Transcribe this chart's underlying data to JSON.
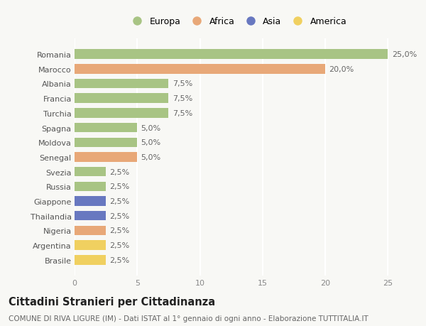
{
  "countries": [
    "Romania",
    "Marocco",
    "Albania",
    "Francia",
    "Turchia",
    "Spagna",
    "Moldova",
    "Senegal",
    "Svezia",
    "Russia",
    "Giappone",
    "Thailandia",
    "Nigeria",
    "Argentina",
    "Brasile"
  ],
  "values": [
    25.0,
    20.0,
    7.5,
    7.5,
    7.5,
    5.0,
    5.0,
    5.0,
    2.5,
    2.5,
    2.5,
    2.5,
    2.5,
    2.5,
    2.5
  ],
  "continents": [
    "Europa",
    "Africa",
    "Europa",
    "Europa",
    "Europa",
    "Europa",
    "Europa",
    "Africa",
    "Europa",
    "Europa",
    "Asia",
    "Asia",
    "Africa",
    "America",
    "America"
  ],
  "colors": {
    "Europa": "#a8c484",
    "Africa": "#e8a878",
    "Asia": "#6878c0",
    "America": "#f0d060"
  },
  "xlim": [
    0,
    26
  ],
  "xticks": [
    0,
    5,
    10,
    15,
    20,
    25
  ],
  "title": "Cittadini Stranieri per Cittadinanza",
  "subtitle": "COMUNE DI RIVA LIGURE (IM) - Dati ISTAT al 1° gennaio di ogni anno - Elaborazione TUTTITALIA.IT",
  "bg_color": "#f8f8f5",
  "bar_height": 0.65,
  "label_fontsize": 8,
  "tick_fontsize": 8,
  "title_fontsize": 10.5,
  "subtitle_fontsize": 7.5,
  "legend_order": [
    "Europa",
    "Africa",
    "Asia",
    "America"
  ]
}
